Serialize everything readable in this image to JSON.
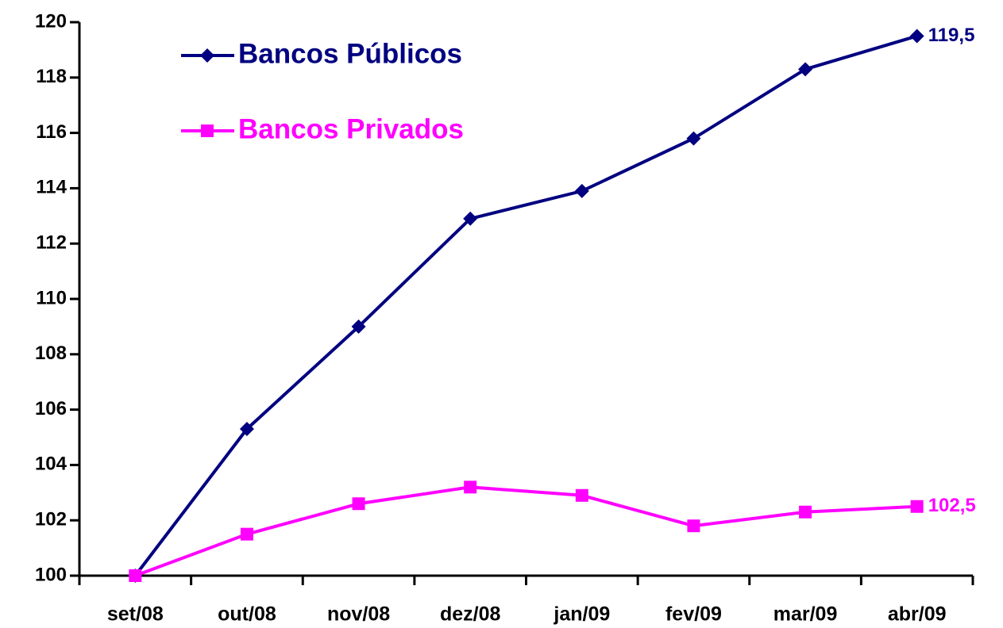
{
  "chart_data": {
    "type": "line",
    "categories": [
      "set/08",
      "out/08",
      "nov/08",
      "dez/08",
      "jan/09",
      "fev/09",
      "mar/09",
      "abr/09"
    ],
    "series": [
      {
        "name": "Bancos Públicos",
        "color": "#000080",
        "marker": "diamond",
        "values": [
          100,
          105.3,
          109.0,
          112.9,
          113.9,
          115.8,
          118.3,
          119.5
        ],
        "value_labels": [
          null,
          null,
          null,
          null,
          null,
          null,
          null,
          "119,5"
        ]
      },
      {
        "name": "Bancos Privados",
        "color": "#ff00ff",
        "marker": "square",
        "values": [
          100,
          101.5,
          102.6,
          103.2,
          102.9,
          101.8,
          102.3,
          102.5
        ],
        "value_labels": [
          null,
          null,
          null,
          null,
          null,
          null,
          null,
          "102,5"
        ]
      }
    ],
    "ylim": [
      100,
      120
    ],
    "yticks": [
      100,
      102,
      104,
      106,
      108,
      110,
      112,
      114,
      116,
      118,
      120
    ],
    "grid": false,
    "legend": "upper left"
  }
}
